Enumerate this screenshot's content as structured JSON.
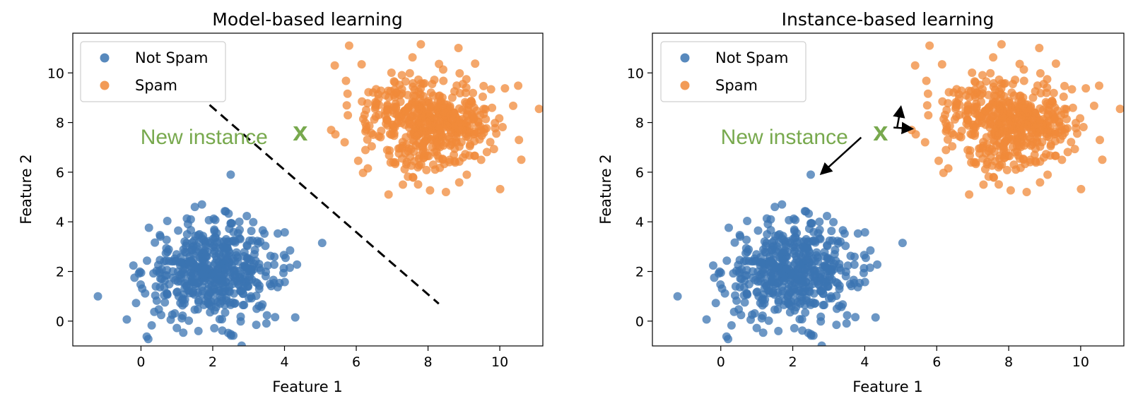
{
  "colors": {
    "not_spam": "#3b74b2",
    "spam": "#f0893a",
    "annotation": "#78a94e",
    "boundary": "#000000",
    "arrow": "#000000"
  },
  "chart_data": [
    {
      "type": "scatter",
      "title": "Model-based learning",
      "xlabel": "Feature 1",
      "ylabel": "Feature 2",
      "xlim": [
        -1.9,
        11.2
      ],
      "ylim": [
        -1.0,
        11.6
      ],
      "xticks": [
        0,
        2,
        4,
        6,
        8,
        10
      ],
      "yticks": [
        0,
        2,
        4,
        6,
        8,
        10
      ],
      "grid": false,
      "legend": {
        "placement": "top-left",
        "entries": [
          "Not Spam",
          "Spam"
        ]
      },
      "series": [
        {
          "name": "Not Spam",
          "center": [
            2,
            2
          ],
          "spread": 1.0,
          "count": 500,
          "outliers": [
            [
              2.5,
              5.9
            ],
            [
              -1.2,
              1.0
            ],
            [
              5.05,
              3.15
            ],
            [
              1.7,
              4.7
            ],
            [
              4.3,
              0.15
            ],
            [
              1.6,
              -0.4
            ]
          ]
        },
        {
          "name": "Spam",
          "center": [
            8,
            8
          ],
          "spread": 1.0,
          "count": 500,
          "outliers": [
            [
              5.4,
              10.3
            ],
            [
              5.8,
              11.1
            ],
            [
              7.8,
              11.15
            ],
            [
              5.3,
              7.7
            ],
            [
              6.9,
              5.1
            ],
            [
              8.5,
              5.2
            ],
            [
              10.6,
              6.5
            ],
            [
              7.3,
              5.5
            ]
          ]
        }
      ],
      "new_instance": {
        "label": "New instance",
        "marker": "x",
        "x": 4.4,
        "y": 7.65
      },
      "decision_boundary": {
        "style": "dashed",
        "from": [
          1.6,
          9.1
        ],
        "to": [
          8.3,
          0.7
        ]
      },
      "arrows": []
    },
    {
      "type": "scatter",
      "title": "Instance-based learning",
      "xlabel": "Feature 1",
      "ylabel": "Feature 2",
      "xlim": [
        -1.9,
        11.2
      ],
      "ylim": [
        -1.0,
        11.6
      ],
      "xticks": [
        0,
        2,
        4,
        6,
        8,
        10
      ],
      "yticks": [
        0,
        2,
        4,
        6,
        8,
        10
      ],
      "grid": false,
      "legend": {
        "placement": "top-left",
        "entries": [
          "Not Spam",
          "Spam"
        ]
      },
      "series": [
        {
          "name": "Not Spam",
          "center": [
            2,
            2
          ],
          "spread": 1.0,
          "count": 500,
          "outliers": [
            [
              2.5,
              5.9
            ],
            [
              -1.2,
              1.0
            ],
            [
              5.05,
              3.15
            ],
            [
              1.7,
              4.7
            ],
            [
              4.3,
              0.15
            ],
            [
              1.6,
              -0.4
            ]
          ]
        },
        {
          "name": "Spam",
          "center": [
            8,
            8
          ],
          "spread": 1.0,
          "count": 500,
          "outliers": [
            [
              5.4,
              10.3
            ],
            [
              5.8,
              11.1
            ],
            [
              7.8,
              11.15
            ],
            [
              5.3,
              7.7
            ],
            [
              6.9,
              5.1
            ],
            [
              8.5,
              5.2
            ],
            [
              10.6,
              6.5
            ],
            [
              7.3,
              5.5
            ]
          ]
        }
      ],
      "new_instance": {
        "label": "New instance",
        "marker": "x",
        "x": 4.4,
        "y": 7.65
      },
      "decision_boundary": null,
      "arrows": [
        {
          "from": [
            4.9,
            7.8
          ],
          "to": [
            5.0,
            8.6
          ]
        },
        {
          "from": [
            4.8,
            7.8
          ],
          "to": [
            5.3,
            7.75
          ]
        },
        {
          "from": [
            3.9,
            7.4
          ],
          "to": [
            2.8,
            5.95
          ]
        }
      ]
    }
  ]
}
